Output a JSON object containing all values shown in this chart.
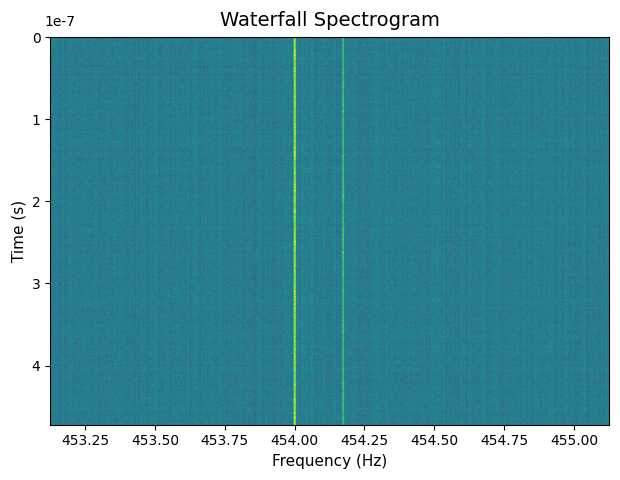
{
  "title": "Waterfall Spectrogram",
  "xlabel": "Frequency (Hz)",
  "ylabel": "Time (s)",
  "freq_min": 453.125,
  "freq_max": 455.125,
  "time_min": 0.0,
  "time_max": 4.72e-07,
  "time_offset_label": "1e-7",
  "xticks": [
    453.25,
    453.5,
    453.75,
    454.0,
    454.25,
    454.5,
    454.75,
    455.0
  ],
  "yticks": [
    0,
    1e-07,
    2e-07,
    3e-07,
    4e-07
  ],
  "ytick_labels": [
    "0",
    "1",
    "2",
    "3",
    "4"
  ],
  "signal_line1_freq": 454.0,
  "signal_line2_freq": 454.175,
  "fig_bg_color": "#ffffff",
  "title_fontsize": 14,
  "label_fontsize": 11,
  "tick_fontsize": 10,
  "figwidth": 6.2,
  "figheight": 4.8,
  "dpi": 100
}
